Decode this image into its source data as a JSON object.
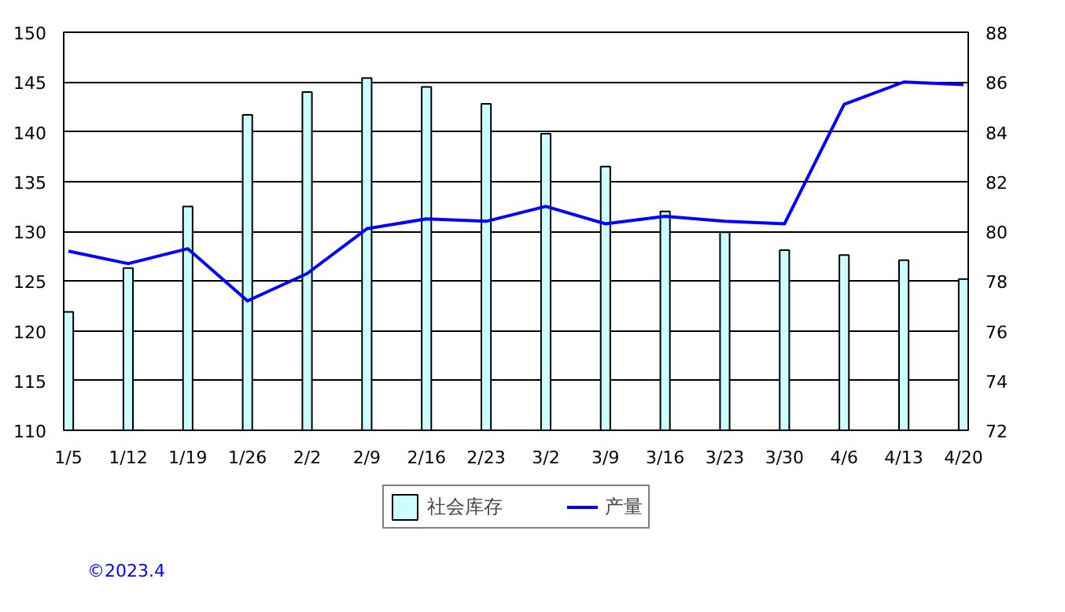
{
  "chart_data": {
    "type": "bar",
    "categories": [
      "1/5",
      "1/12",
      "1/19",
      "1/26",
      "2/2",
      "2/9",
      "2/16",
      "2/23",
      "3/2",
      "3/9",
      "3/16",
      "3/23",
      "3/30",
      "4/6",
      "4/13",
      "4/20"
    ],
    "series": [
      {
        "name": "社会库存",
        "color": "#ccffff",
        "values": [
          121.9,
          126.3,
          132.5,
          141.7,
          144.0,
          145.4,
          144.5,
          142.8,
          139.8,
          136.5,
          132.0,
          129.9,
          128.1,
          127.6,
          127.1,
          125.2
        ]
      },
      {
        "name": "产量",
        "type": "line",
        "axis": "y2",
        "color": "#0000ff",
        "values": [
          79.2,
          78.7,
          79.3,
          77.2,
          78.3,
          80.1,
          80.5,
          80.4,
          81.0,
          80.3,
          80.6,
          80.4,
          80.3,
          85.1,
          86.0,
          85.9
        ]
      }
    ],
    "ylim": [
      110,
      150
    ],
    "yticks": [
      110,
      115,
      120,
      125,
      130,
      135,
      140,
      145,
      150
    ],
    "y2lim": [
      72,
      88
    ],
    "y2ticks": [
      72,
      74,
      76,
      78,
      80,
      82,
      84,
      86,
      88
    ],
    "grid": "y",
    "legend": "bottom",
    "line_style": "solid",
    "annotations": [
      "©2023.4"
    ]
  }
}
